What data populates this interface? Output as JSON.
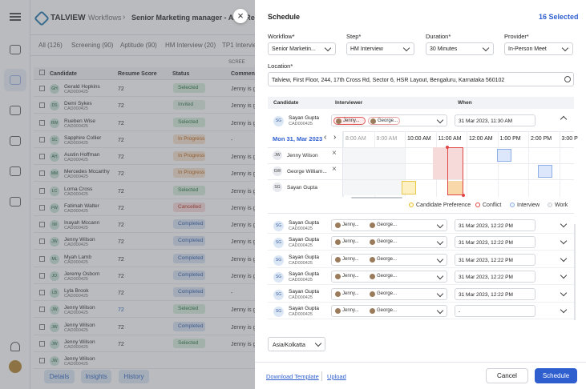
{
  "app": {
    "logo": "TALVIEW",
    "breadcrumb": [
      "Workflows",
      "Senior Marketing manager - APC Re"
    ],
    "tabs": [
      "All (126)",
      "Screening (90)",
      "Aptitude (90)",
      "HM Interview (20)",
      "TP1 Interview"
    ],
    "column_group": "SCREE",
    "columns": [
      "Candidate",
      "Resume Score",
      "Status",
      "Comments"
    ],
    "rows": [
      {
        "initials": "GH",
        "name": "Gerald Hopkins",
        "id": "CAD000425",
        "score": "72",
        "status": "Selected",
        "comment": "Jenny is g"
      },
      {
        "initials": "DS",
        "name": "Demi Sykes",
        "id": "CAD000425",
        "score": "72",
        "status": "Invited",
        "comment": "Jenny is g"
      },
      {
        "initials": "RW",
        "name": "Rueben Wise",
        "id": "CAD000425",
        "score": "72",
        "status": "Selected",
        "comment": "Jenny is g"
      },
      {
        "initials": "SC",
        "name": "Sapphire Collier",
        "id": "CAD000425",
        "score": "72",
        "status": "In Progress",
        "comment": "-"
      },
      {
        "initials": "AH",
        "name": "Austin Hoffman",
        "id": "CAD000425",
        "score": "72",
        "status": "In Progress",
        "comment": "Jenny is g"
      },
      {
        "initials": "MM",
        "name": "Mercedes Mccarthy",
        "id": "CAD000425",
        "score": "72",
        "status": "In Progress",
        "comment": "Jenny is g"
      },
      {
        "initials": "LC",
        "name": "Lorna Cross",
        "id": "CAD000425",
        "score": "72",
        "status": "Selected",
        "comment": "Jenny is g"
      },
      {
        "initials": "FW",
        "name": "Fatimah Walter",
        "id": "CAD000425",
        "score": "72",
        "status": "Cancelled",
        "comment": "Jenny is g"
      },
      {
        "initials": "IM",
        "name": "Inayah Mccann",
        "id": "CAD000425",
        "score": "72",
        "status": "Completed",
        "comment": "Jenny is g"
      },
      {
        "initials": "JW",
        "name": "Jenny Wilson",
        "id": "CAD000425",
        "score": "72",
        "status": "Completed",
        "comment": "Jenny is g"
      },
      {
        "initials": "ML",
        "name": "Myah Lamb",
        "id": "CAD000425",
        "score": "72",
        "status": "Completed",
        "comment": "Jenny is g"
      },
      {
        "initials": "JO",
        "name": "Jeremy Osborn",
        "id": "CAD000425",
        "score": "72",
        "status": "Completed",
        "comment": "Jenny is g"
      },
      {
        "initials": "LB",
        "name": "Lyla Brook",
        "id": "CAD000425",
        "score": "72",
        "status": "Completed",
        "comment": "-"
      },
      {
        "initials": "JW",
        "name": "Jenny Wilson",
        "id": "CAD000425",
        "score": "72",
        "status": "Selected",
        "comment": "Jenny is g"
      },
      {
        "initials": "JW",
        "name": "Jenny Wilson",
        "id": "CAD000425",
        "score": "72",
        "status": "Completed",
        "comment": "Jenny is g"
      },
      {
        "initials": "JW",
        "name": "Jenny Wilson",
        "id": "CAD000425",
        "score": "72",
        "status": "Selected",
        "comment": "Jenny is g"
      },
      {
        "initials": "JW",
        "name": "Jenny Wilson",
        "id": "CAD000425",
        "score": "",
        "status": "",
        "comment": ""
      }
    ],
    "buttons": [
      "Details",
      "Insights",
      "History"
    ]
  },
  "drawer": {
    "title": "Schedule",
    "selected": "16 Selected",
    "fields": [
      {
        "label": "Workflow*",
        "value": "Senior Marketin..."
      },
      {
        "label": "Step*",
        "value": "HM Interview"
      },
      {
        "label": "Duration*",
        "value": "30 Minutes"
      },
      {
        "label": "Provider*",
        "value": "In-Person Meet"
      }
    ],
    "location": {
      "label": "Location*",
      "value": "Talview, First Floor, 244, 17th Cross Rd, Sector 6, HSR Layout, Bengaluru, Karnataka 560102"
    },
    "grid_columns": [
      "Candidate",
      "Interviewer",
      "When"
    ],
    "expanded": {
      "initials": "SG",
      "name": "Sayan Gupta",
      "id": "CAD000425",
      "interviewers": [
        "Jenny...",
        "George..."
      ],
      "when": "31 Mar 2023, 11:30 AM"
    },
    "calendar": {
      "date": "Mon 31, Mar 2023",
      "times": [
        "8:00 AM",
        "9:00 AM",
        "10:00 AM",
        "11:00 AM",
        "12:00 AM",
        "1:00 PM",
        "2:00 PM",
        "3:00 P"
      ],
      "people": [
        {
          "initials": "JW",
          "name": "Jenny Wilson"
        },
        {
          "initials": "GW",
          "name": "George William..."
        },
        {
          "initials": "SG",
          "name": "Sayan Gupta"
        }
      ],
      "legend": [
        "Candidate Preference",
        "Conflict",
        "Interview",
        "Work"
      ]
    },
    "rows": [
      {
        "initials": "SG",
        "name": "Sayan Gupta",
        "id": "CAD000425",
        "interviewers": [
          "Jenny...",
          "George..."
        ],
        "when": "31 Mar 2023, 12:22 PM"
      },
      {
        "initials": "SG",
        "name": "Sayan Gupta",
        "id": "CAD000425",
        "interviewers": [
          "Jenny...",
          "George..."
        ],
        "when": "31 Mar 2023, 12:22 PM"
      },
      {
        "initials": "SG",
        "name": "Sayan Gupta",
        "id": "CAD000425",
        "interviewers": [
          "Jenny...",
          "George..."
        ],
        "when": "31 Mar 2023, 12:22 PM"
      },
      {
        "initials": "SG",
        "name": "Sayan Gupta",
        "id": "CAD000425",
        "interviewers": [
          "Jenny...",
          "George..."
        ],
        "when": "31 Mar 2023, 12:22 PM"
      },
      {
        "initials": "SG",
        "name": "Sayan Gupta",
        "id": "CAD000425",
        "interviewers": [
          "Jenny...",
          "George..."
        ],
        "when": "31 Mar 2023, 12:22 PM"
      },
      {
        "initials": "SG",
        "name": "Sayan Gupta",
        "id": "CAD000425",
        "interviewers": [
          "Jenny...",
          "George..."
        ],
        "when": "-"
      }
    ],
    "timezone": "Asia/Kolkatta",
    "footer": {
      "download": "Download Template",
      "upload": "Upload",
      "cancel": "Cancel",
      "schedule": "Schedule"
    }
  }
}
